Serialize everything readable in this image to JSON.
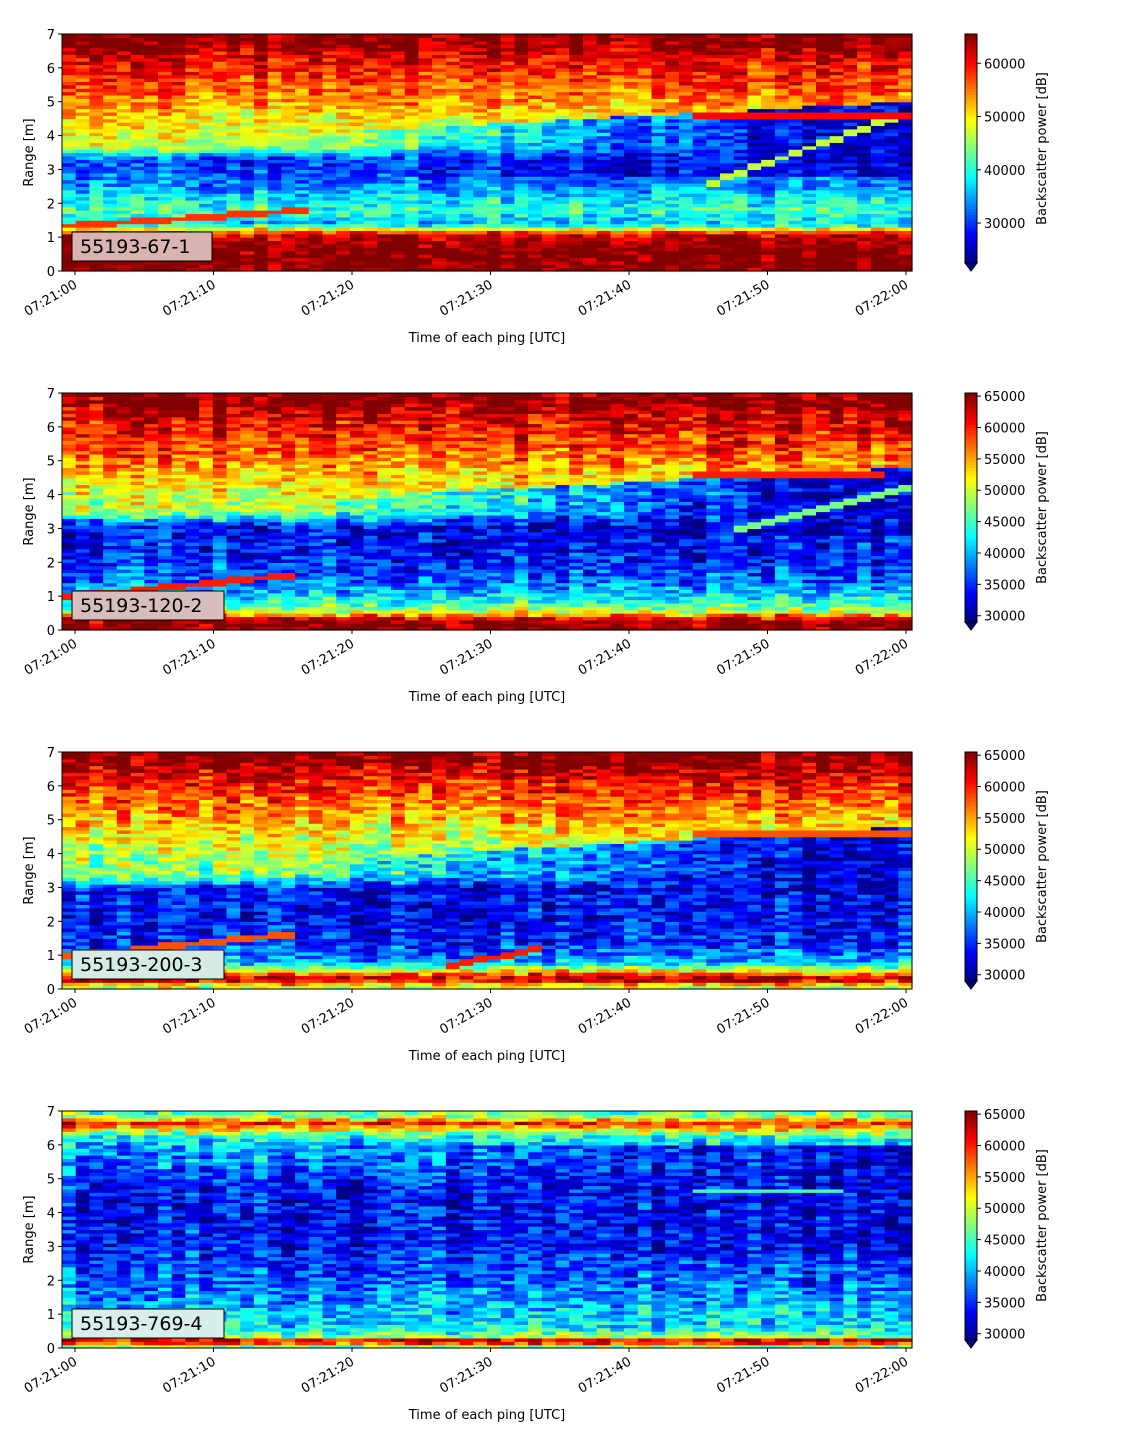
{
  "chart_data": [
    {
      "type": "heatmap",
      "label": "55193-67-1",
      "xlabel": "Time of each ping [UTC]",
      "ylabel": "Range [m]",
      "ylim": [
        0,
        7
      ],
      "x_ticks": [
        "07:21:00",
        "07:21:10",
        "07:21:20",
        "07:21:30",
        "07:21:40",
        "07:21:50",
        "07:22:00"
      ],
      "y_ticks": [
        "0",
        "1",
        "2",
        "3",
        "4",
        "5",
        "6",
        "7"
      ],
      "colorbar": {
        "label": "Backscatter power [dB]",
        "ticks": [
          "30000",
          "40000",
          "50000",
          "60000"
        ],
        "tick_values": [
          30000,
          40000,
          50000,
          60000
        ],
        "range": [
          22500,
          65500
        ],
        "extend": "min"
      },
      "colormap": "jet",
      "label_box_color": "#d9b2b2",
      "layers": [
        {
          "y": 6.8,
          "value": 65500
        },
        {
          "y": 6.3,
          "value": 61000
        },
        {
          "y": 5.5,
          "value": 57000
        },
        {
          "y": 4.5,
          "value": 50000
        },
        {
          "y": 3.7,
          "value": 47000
        },
        {
          "y": 3.3,
          "value": 30000
        },
        {
          "y": 2.6,
          "value": 33000
        },
        {
          "y": 1.8,
          "value": 41000
        },
        {
          "y": 1.4,
          "value": 36000
        },
        {
          "y": 1.1,
          "value": 62000
        },
        {
          "y": 0.7,
          "value": 66000
        },
        {
          "y": 0.2,
          "value": 66000
        }
      ],
      "drift": {
        "upper_start": 3.7,
        "upper_end": 5.0,
        "low_value": 26000
      },
      "traces": [
        {
          "t0": 0,
          "r0": 1.35,
          "t1": 17,
          "r1": 1.8,
          "value": 58000
        },
        {
          "t0": 46,
          "r0": 2.6,
          "t1": 61,
          "r1": 4.8,
          "value": 47000
        },
        {
          "t0": 45,
          "r0": 4.6,
          "t1": 61,
          "r1": 4.6,
          "value": 60000
        }
      ]
    },
    {
      "type": "heatmap",
      "label": "55193-120-2",
      "xlabel": "Time of each ping [UTC]",
      "ylabel": "Range [m]",
      "ylim": [
        0,
        7
      ],
      "x_ticks": [
        "07:21:00",
        "07:21:10",
        "07:21:20",
        "07:21:30",
        "07:21:40",
        "07:21:50",
        "07:22:00"
      ],
      "y_ticks": [
        "0",
        "1",
        "2",
        "3",
        "4",
        "5",
        "6",
        "7"
      ],
      "colorbar": {
        "label": "Backscatter power [dB]",
        "ticks": [
          "30000",
          "35000",
          "40000",
          "45000",
          "50000",
          "55000",
          "60000",
          "65000"
        ],
        "tick_values": [
          30000,
          35000,
          40000,
          45000,
          50000,
          55000,
          60000,
          65000
        ],
        "range": [
          29000,
          65500
        ],
        "extend": "min"
      },
      "colormap": "jet",
      "label_box_color": "#d8bdbd",
      "layers": [
        {
          "y": 6.8,
          "value": 65500
        },
        {
          "y": 6.2,
          "value": 62000
        },
        {
          "y": 5.3,
          "value": 58000
        },
        {
          "y": 4.3,
          "value": 52000
        },
        {
          "y": 3.5,
          "value": 49000
        },
        {
          "y": 3.1,
          "value": 34000
        },
        {
          "y": 2.3,
          "value": 34000
        },
        {
          "y": 1.5,
          "value": 37000
        },
        {
          "y": 1.0,
          "value": 42000
        },
        {
          "y": 0.6,
          "value": 48000
        },
        {
          "y": 0.3,
          "value": 65500
        },
        {
          "y": 0.1,
          "value": 65500
        }
      ],
      "drift": {
        "upper_start": 3.5,
        "upper_end": 4.8,
        "low_value": 32000
      },
      "traces": [
        {
          "t0": 0,
          "r0": 1.0,
          "t1": 16,
          "r1": 1.65,
          "value": 60000
        },
        {
          "t0": 48,
          "r0": 3.0,
          "t1": 61,
          "r1": 4.3,
          "value": 47000
        },
        {
          "t0": 45,
          "r0": 4.6,
          "t1": 59,
          "r1": 4.6,
          "value": 60000
        }
      ]
    },
    {
      "type": "heatmap",
      "label": "55193-200-3",
      "xlabel": "Time of each ping [UTC]",
      "ylabel": "Range [m]",
      "ylim": [
        0,
        7
      ],
      "x_ticks": [
        "07:21:00",
        "07:21:10",
        "07:21:20",
        "07:21:30",
        "07:21:40",
        "07:21:50",
        "07:22:00"
      ],
      "y_ticks": [
        "0",
        "1",
        "2",
        "3",
        "4",
        "5",
        "6",
        "7"
      ],
      "colorbar": {
        "label": "Backscatter power [dB]",
        "ticks": [
          "30000",
          "35000",
          "40000",
          "45000",
          "50000",
          "55000",
          "60000",
          "65000"
        ],
        "tick_values": [
          30000,
          35000,
          40000,
          45000,
          50000,
          55000,
          60000,
          65000
        ],
        "range": [
          29000,
          65500
        ],
        "extend": "min"
      },
      "colormap": "jet",
      "label_box_color": "#d5ece6",
      "layers": [
        {
          "y": 6.8,
          "value": 65500
        },
        {
          "y": 6.2,
          "value": 61000
        },
        {
          "y": 5.3,
          "value": 56000
        },
        {
          "y": 4.3,
          "value": 50000
        },
        {
          "y": 3.4,
          "value": 47000
        },
        {
          "y": 3.0,
          "value": 34000
        },
        {
          "y": 2.2,
          "value": 33000
        },
        {
          "y": 1.3,
          "value": 35000
        },
        {
          "y": 0.8,
          "value": 40000
        },
        {
          "y": 0.5,
          "value": 55000
        },
        {
          "y": 0.3,
          "value": 65500
        },
        {
          "y": 0.1,
          "value": 50000
        }
      ],
      "drift": {
        "upper_start": 3.4,
        "upper_end": 4.8,
        "low_value": 32000
      },
      "traces": [
        {
          "t0": 0,
          "r0": 1.0,
          "t1": 16,
          "r1": 1.65,
          "value": 58000
        },
        {
          "t0": 27,
          "r0": 0.7,
          "t1": 34,
          "r1": 1.2,
          "value": 60000
        },
        {
          "t0": 45,
          "r0": 4.6,
          "t1": 60,
          "r1": 4.6,
          "value": 58000
        }
      ]
    },
    {
      "type": "heatmap",
      "label": "55193-769-4",
      "xlabel": "Time of each ping [UTC]",
      "ylabel": "Range [m]",
      "ylim": [
        0,
        7
      ],
      "x_ticks": [
        "07:21:00",
        "07:21:10",
        "07:21:20",
        "07:21:30",
        "07:21:40",
        "07:21:50",
        "07:22:00"
      ],
      "y_ticks": [
        "0",
        "1",
        "2",
        "3",
        "4",
        "5",
        "6",
        "7"
      ],
      "colorbar": {
        "label": "Backscatter power [dB]",
        "ticks": [
          "30000",
          "35000",
          "40000",
          "45000",
          "50000",
          "55000",
          "60000",
          "65000"
        ],
        "tick_values": [
          30000,
          35000,
          40000,
          45000,
          50000,
          55000,
          60000,
          65000
        ],
        "range": [
          29000,
          65500
        ],
        "extend": "min"
      },
      "colormap": "jet",
      "label_box_color": "#d8eeea",
      "layers": [
        {
          "y": 6.9,
          "value": 46000
        },
        {
          "y": 6.65,
          "value": 60000
        },
        {
          "y": 6.2,
          "value": 42000
        },
        {
          "y": 5.4,
          "value": 38000
        },
        {
          "y": 4.5,
          "value": 34000
        },
        {
          "y": 3.6,
          "value": 34000
        },
        {
          "y": 2.8,
          "value": 35000
        },
        {
          "y": 2.0,
          "value": 37000
        },
        {
          "y": 1.2,
          "value": 40000
        },
        {
          "y": 0.6,
          "value": 42000
        },
        {
          "y": 0.35,
          "value": 48000
        },
        {
          "y": 0.22,
          "value": 65500
        },
        {
          "y": 0.05,
          "value": 48000
        }
      ],
      "drift": {
        "upper_start": 6.0,
        "upper_end": 6.0,
        "low_value": 33000
      },
      "traces": [
        {
          "t0": 45,
          "r0": 4.65,
          "t1": 56,
          "r1": 4.65,
          "value": 45000
        }
      ]
    }
  ]
}
